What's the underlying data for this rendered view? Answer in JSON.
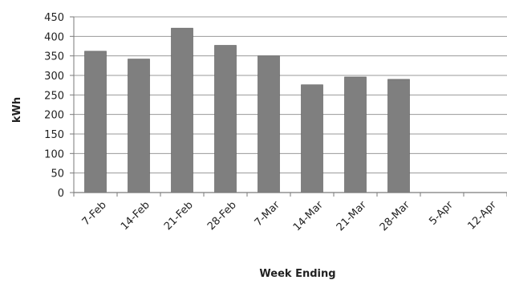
{
  "chart_data": {
    "type": "bar",
    "categories": [
      "7-Feb",
      "14-Feb",
      "21-Feb",
      "28-Feb",
      "7-Mar",
      "14-Mar",
      "21-Mar",
      "28-Mar",
      "5-Apr",
      "12-Apr"
    ],
    "values": [
      362,
      342,
      421,
      377,
      350,
      276,
      296,
      290,
      null,
      null
    ],
    "xlabel": "Week Ending",
    "ylabel": "kWh",
    "ylim": [
      0,
      450
    ],
    "yticks": [
      "0",
      "50",
      "100",
      "150",
      "200",
      "250",
      "300",
      "350",
      "400",
      "450"
    ],
    "grid": true,
    "legend": "none",
    "colors": {
      "bar": "#7f7f7f",
      "bar_stroke": "#5a5a5a",
      "grid": "#9a9a9a",
      "axis": "#7a7a7a",
      "text": "#222222"
    }
  }
}
